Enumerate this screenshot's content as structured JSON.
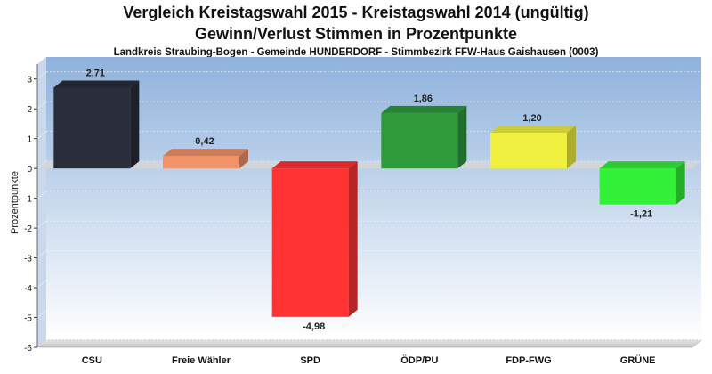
{
  "header": {
    "title_line1": "Vergleich Kreistagswahl 2015 - Kreistagswahl 2014 (ungültig)",
    "title_line2": "Gewinn/Verlust Stimmen in Prozentpunkte",
    "subtitle": "Landkreis Straubing-Bogen - Gemeinde HUNDERDORF - Stimmbezirk FFW-Haus Gaishausen (0003)"
  },
  "chart_data": {
    "type": "bar",
    "title": "Vergleich Kreistagswahl 2015 - Kreistagswahl 2014 (ungültig)",
    "subtitle": "Gewinn/Verlust Stimmen in Prozentpunkte",
    "xlabel": "",
    "ylabel": "Prozentpunkte",
    "ylim": [
      -6,
      3.5
    ],
    "yticks": [
      "3",
      "2",
      "1",
      "0",
      "-1",
      "-2",
      "-3",
      "-4",
      "-5",
      "-6"
    ],
    "categories": [
      "CSU",
      "Freie Wähler",
      "SPD",
      "ÖDP/PU",
      "FDP-FWG",
      "GRÜNE"
    ],
    "values": [
      2.71,
      0.42,
      -4.98,
      1.86,
      1.2,
      -1.21
    ],
    "labels": [
      "2,71",
      "0,42",
      "-4,98",
      "1,86",
      "1,20",
      "-1,21"
    ],
    "colors": [
      "#2a2e3a",
      "#f0926a",
      "#ff3333",
      "#2e9a3a",
      "#f0f040",
      "#33f038"
    ],
    "grid": true
  }
}
